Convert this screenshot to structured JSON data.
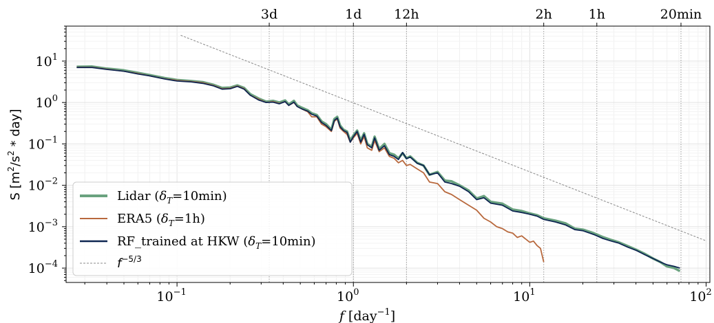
{
  "chart_data": {
    "type": "line",
    "xscale": "log",
    "yscale": "log",
    "xlim": [
      0.0235,
      105
    ],
    "ylim": [
      4.5e-05,
      70
    ],
    "xlabel": "f [day⁻¹]",
    "xlabel_parts": {
      "var": "f",
      "unit": " [day",
      "sup": "−1",
      "close": "]"
    },
    "ylabel_parts": {
      "base": "S [m",
      "sup1": "2",
      "mid": "/s",
      "sup2": "2",
      "tail": " * day]"
    },
    "grid": true,
    "legend_position": "lower-left",
    "x_ticks": [
      {
        "value": 0.1,
        "base": "10",
        "exp": "−1"
      },
      {
        "value": 1,
        "base": "10",
        "exp": "0"
      },
      {
        "value": 10,
        "base": "10",
        "exp": "1"
      },
      {
        "value": 100,
        "base": "10",
        "exp": "2"
      }
    ],
    "y_ticks": [
      {
        "value": 10,
        "base": "10",
        "exp": "1"
      },
      {
        "value": 1,
        "base": "10",
        "exp": "0"
      },
      {
        "value": 0.1,
        "base": "10",
        "exp": "−1"
      },
      {
        "value": 0.01,
        "base": "10",
        "exp": "−2"
      },
      {
        "value": 0.001,
        "base": "10",
        "exp": "−3"
      },
      {
        "value": 0.0001,
        "base": "10",
        "exp": "−4"
      }
    ],
    "top_ticks": [
      {
        "label": "3d",
        "value": 0.3333
      },
      {
        "label": "1d",
        "value": 1
      },
      {
        "label": "12h",
        "value": 2
      },
      {
        "label": "2h",
        "value": 12
      },
      {
        "label": "1h",
        "value": 24
      },
      {
        "label": "20min",
        "value": 72
      }
    ],
    "series": [
      {
        "name": "Lidar (δT=10min)",
        "legend_parts": {
          "pre": "Lidar (",
          "sym": "δ",
          "sub": "T",
          "post": "=10min)"
        },
        "color": "#6aa27f",
        "style": "thick",
        "points": [
          [
            0.027,
            7.3
          ],
          [
            0.033,
            7.4
          ],
          [
            0.04,
            6.6
          ],
          [
            0.05,
            6.0
          ],
          [
            0.06,
            5.2
          ],
          [
            0.07,
            4.6
          ],
          [
            0.085,
            3.9
          ],
          [
            0.1,
            3.5
          ],
          [
            0.12,
            3.3
          ],
          [
            0.14,
            3.1
          ],
          [
            0.16,
            2.7
          ],
          [
            0.18,
            2.25
          ],
          [
            0.2,
            2.3
          ],
          [
            0.22,
            2.6
          ],
          [
            0.24,
            2.25
          ],
          [
            0.26,
            1.6
          ],
          [
            0.29,
            1.25
          ],
          [
            0.32,
            1.05
          ],
          [
            0.35,
            1.1
          ],
          [
            0.38,
            1.0
          ],
          [
            0.41,
            1.12
          ],
          [
            0.43,
            0.9
          ],
          [
            0.46,
            1.1
          ],
          [
            0.48,
            0.85
          ],
          [
            0.51,
            0.75
          ],
          [
            0.55,
            0.65
          ],
          [
            0.58,
            0.55
          ],
          [
            0.62,
            0.5
          ],
          [
            0.66,
            0.35
          ],
          [
            0.7,
            0.3
          ],
          [
            0.75,
            0.22
          ],
          [
            0.78,
            0.4
          ],
          [
            0.81,
            0.45
          ],
          [
            0.84,
            0.28
          ],
          [
            0.88,
            0.22
          ],
          [
            0.92,
            0.2
          ],
          [
            0.96,
            0.12
          ],
          [
            1.0,
            0.16
          ],
          [
            1.05,
            0.21
          ],
          [
            1.1,
            0.12
          ],
          [
            1.15,
            0.18
          ],
          [
            1.2,
            0.1
          ],
          [
            1.27,
            0.085
          ],
          [
            1.32,
            0.15
          ],
          [
            1.4,
            0.075
          ],
          [
            1.5,
            0.1
          ],
          [
            1.6,
            0.06
          ],
          [
            1.7,
            0.055
          ],
          [
            1.8,
            0.045
          ],
          [
            1.9,
            0.06
          ],
          [
            2.0,
            0.045
          ],
          [
            2.1,
            0.05
          ],
          [
            2.3,
            0.035
          ],
          [
            2.5,
            0.03
          ],
          [
            2.7,
            0.018
          ],
          [
            3.0,
            0.021
          ],
          [
            3.3,
            0.013
          ],
          [
            3.6,
            0.0125
          ],
          [
            4.0,
            0.01
          ],
          [
            4.5,
            0.0075
          ],
          [
            5.0,
            0.0048
          ],
          [
            5.5,
            0.0055
          ],
          [
            6.0,
            0.004
          ],
          [
            7.0,
            0.0036
          ],
          [
            8.0,
            0.0026
          ],
          [
            9.0,
            0.0024
          ],
          [
            10.0,
            0.0021
          ],
          [
            11.0,
            0.0019
          ],
          [
            12.0,
            0.0016
          ],
          [
            14.0,
            0.0014
          ],
          [
            16.0,
            0.0012
          ],
          [
            18.0,
            0.0009
          ],
          [
            20.0,
            0.00085
          ],
          [
            23.0,
            0.0007
          ],
          [
            26.0,
            0.00056
          ],
          [
            29.0,
            0.00048
          ],
          [
            32.0,
            0.00042
          ],
          [
            36.0,
            0.00034
          ],
          [
            40.0,
            0.00028
          ],
          [
            45.0,
            0.00022
          ],
          [
            50.0,
            0.00017
          ],
          [
            55.0,
            0.00014
          ],
          [
            60.0,
            0.00011
          ],
          [
            66.0,
            0.0001
          ],
          [
            71.0,
            8.5e-05
          ]
        ]
      },
      {
        "name": "ERA5 (δT=1h)",
        "legend_parts": {
          "pre": "ERA5 (",
          "sym": "δ",
          "sub": "T",
          "post": "=1h)"
        },
        "color": "#b8683c",
        "style": "thin",
        "points": [
          [
            0.027,
            7.1
          ],
          [
            0.033,
            7.1
          ],
          [
            0.04,
            6.4
          ],
          [
            0.05,
            5.7
          ],
          [
            0.06,
            5.0
          ],
          [
            0.07,
            4.4
          ],
          [
            0.085,
            3.75
          ],
          [
            0.1,
            3.4
          ],
          [
            0.12,
            3.2
          ],
          [
            0.14,
            3.0
          ],
          [
            0.16,
            2.6
          ],
          [
            0.18,
            2.15
          ],
          [
            0.2,
            2.2
          ],
          [
            0.22,
            2.5
          ],
          [
            0.24,
            2.15
          ],
          [
            0.26,
            1.5
          ],
          [
            0.29,
            1.2
          ],
          [
            0.32,
            1.0
          ],
          [
            0.35,
            1.05
          ],
          [
            0.38,
            0.95
          ],
          [
            0.41,
            1.05
          ],
          [
            0.43,
            0.85
          ],
          [
            0.46,
            1.0
          ],
          [
            0.48,
            0.8
          ],
          [
            0.51,
            0.7
          ],
          [
            0.55,
            0.6
          ],
          [
            0.58,
            0.45
          ],
          [
            0.62,
            0.45
          ],
          [
            0.66,
            0.3
          ],
          [
            0.7,
            0.26
          ],
          [
            0.75,
            0.2
          ],
          [
            0.78,
            0.35
          ],
          [
            0.81,
            0.4
          ],
          [
            0.84,
            0.24
          ],
          [
            0.88,
            0.2
          ],
          [
            0.92,
            0.17
          ],
          [
            0.96,
            0.11
          ],
          [
            1.0,
            0.14
          ],
          [
            1.05,
            0.18
          ],
          [
            1.1,
            0.1
          ],
          [
            1.15,
            0.15
          ],
          [
            1.2,
            0.08
          ],
          [
            1.27,
            0.07
          ],
          [
            1.32,
            0.12
          ],
          [
            1.4,
            0.065
          ],
          [
            1.5,
            0.08
          ],
          [
            1.6,
            0.05
          ],
          [
            1.7,
            0.045
          ],
          [
            1.8,
            0.035
          ],
          [
            1.9,
            0.04
          ],
          [
            2.0,
            0.03
          ],
          [
            2.1,
            0.032
          ],
          [
            2.3,
            0.025
          ],
          [
            2.5,
            0.02
          ],
          [
            2.7,
            0.012
          ],
          [
            3.0,
            0.011
          ],
          [
            3.3,
            0.007
          ],
          [
            3.6,
            0.006
          ],
          [
            4.0,
            0.0045
          ],
          [
            4.5,
            0.0033
          ],
          [
            5.0,
            0.0025
          ],
          [
            5.5,
            0.0016
          ],
          [
            6.0,
            0.0013
          ],
          [
            6.5,
            0.001
          ],
          [
            7.0,
            0.0009
          ],
          [
            7.5,
            0.00075
          ],
          [
            8.0,
            0.0007
          ],
          [
            8.5,
            0.00055
          ],
          [
            9.0,
            0.0006
          ],
          [
            10.0,
            0.00042
          ],
          [
            10.5,
            0.00045
          ],
          [
            11.0,
            0.00035
          ],
          [
            11.5,
            0.0003
          ],
          [
            12.0,
            0.00014
          ]
        ]
      },
      {
        "name": "RF_trained at HKW (δT=10min)",
        "legend_parts": {
          "pre": "RF_trained at HKW (",
          "sym": "δ",
          "sub": "T",
          "post": "=10min)"
        },
        "color": "#0d2551",
        "style": "medium",
        "points": [
          [
            0.027,
            7.0
          ],
          [
            0.033,
            7.0
          ],
          [
            0.04,
            6.3
          ],
          [
            0.05,
            5.7
          ],
          [
            0.06,
            4.9
          ],
          [
            0.07,
            4.4
          ],
          [
            0.085,
            3.7
          ],
          [
            0.1,
            3.3
          ],
          [
            0.12,
            3.15
          ],
          [
            0.14,
            2.9
          ],
          [
            0.16,
            2.55
          ],
          [
            0.18,
            2.1
          ],
          [
            0.2,
            2.15
          ],
          [
            0.22,
            2.45
          ],
          [
            0.24,
            2.1
          ],
          [
            0.26,
            1.5
          ],
          [
            0.29,
            1.15
          ],
          [
            0.32,
            1.0
          ],
          [
            0.35,
            1.02
          ],
          [
            0.38,
            0.93
          ],
          [
            0.41,
            1.05
          ],
          [
            0.43,
            0.85
          ],
          [
            0.46,
            1.02
          ],
          [
            0.48,
            0.8
          ],
          [
            0.51,
            0.7
          ],
          [
            0.55,
            0.62
          ],
          [
            0.58,
            0.52
          ],
          [
            0.62,
            0.47
          ],
          [
            0.66,
            0.33
          ],
          [
            0.7,
            0.28
          ],
          [
            0.75,
            0.21
          ],
          [
            0.78,
            0.37
          ],
          [
            0.81,
            0.42
          ],
          [
            0.84,
            0.26
          ],
          [
            0.88,
            0.21
          ],
          [
            0.92,
            0.19
          ],
          [
            0.96,
            0.11
          ],
          [
            1.0,
            0.15
          ],
          [
            1.05,
            0.2
          ],
          [
            1.1,
            0.11
          ],
          [
            1.15,
            0.17
          ],
          [
            1.2,
            0.095
          ],
          [
            1.27,
            0.08
          ],
          [
            1.32,
            0.14
          ],
          [
            1.4,
            0.07
          ],
          [
            1.5,
            0.09
          ],
          [
            1.6,
            0.055
          ],
          [
            1.7,
            0.05
          ],
          [
            1.8,
            0.042
          ],
          [
            1.9,
            0.062
          ],
          [
            2.0,
            0.044
          ],
          [
            2.1,
            0.048
          ],
          [
            2.3,
            0.034
          ],
          [
            2.5,
            0.03
          ],
          [
            2.7,
            0.018
          ],
          [
            3.0,
            0.02
          ],
          [
            3.3,
            0.012
          ],
          [
            3.6,
            0.011
          ],
          [
            4.0,
            0.0095
          ],
          [
            4.5,
            0.007
          ],
          [
            5.0,
            0.0045
          ],
          [
            5.5,
            0.005
          ],
          [
            6.0,
            0.0037
          ],
          [
            7.0,
            0.0033
          ],
          [
            8.0,
            0.0024
          ],
          [
            9.0,
            0.0022
          ],
          [
            10.0,
            0.002
          ],
          [
            11.0,
            0.0018
          ],
          [
            12.0,
            0.0015
          ],
          [
            14.0,
            0.0013
          ],
          [
            16.0,
            0.0011
          ],
          [
            18.0,
            0.00085
          ],
          [
            20.0,
            0.0008
          ],
          [
            23.0,
            0.00065
          ],
          [
            26.0,
            0.00052
          ],
          [
            29.0,
            0.00045
          ],
          [
            32.0,
            0.0004
          ],
          [
            36.0,
            0.00032
          ],
          [
            40.0,
            0.00027
          ],
          [
            45.0,
            0.00021
          ],
          [
            50.0,
            0.00017
          ],
          [
            55.0,
            0.00014
          ],
          [
            60.0,
            0.00012
          ],
          [
            66.0,
            0.00011
          ],
          [
            71.0,
            0.0001
          ]
        ]
      }
    ],
    "reference_line": {
      "name": "f⁻⁵ᐟ³",
      "legend_parts": {
        "var": "f",
        "sup": "−5/3"
      },
      "color": "#888888",
      "style": "dashed",
      "x_range": [
        0.105,
        100
      ],
      "y_at_start": 42,
      "slope": -1.6667
    }
  }
}
